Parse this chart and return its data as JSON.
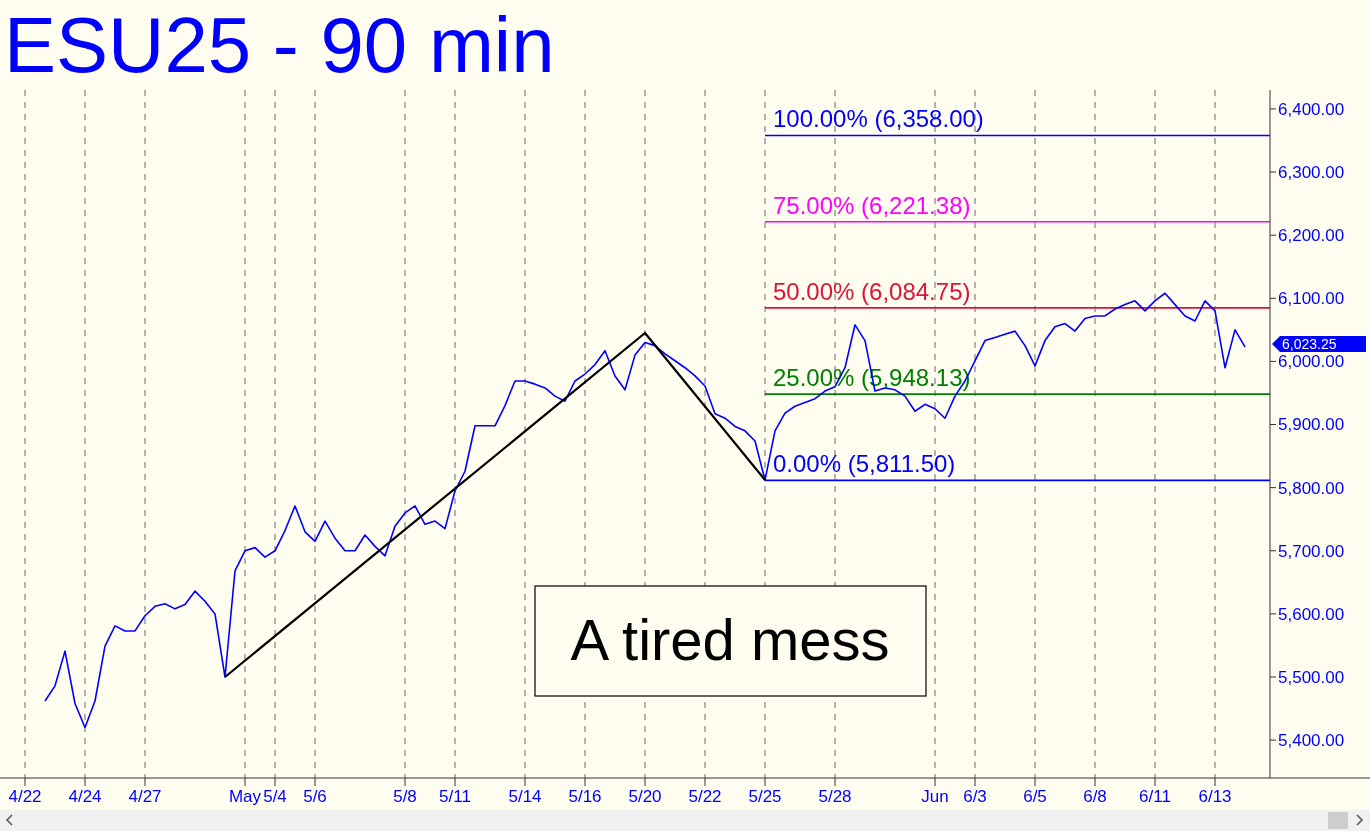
{
  "chart_data": {
    "type": "line",
    "title": "ESU25 - 90 min",
    "categories": [
      null,
      "4/22",
      null,
      null,
      null,
      null,
      null,
      "4/24",
      null,
      null,
      null,
      null,
      null,
      "4/27",
      null,
      null,
      null,
      null,
      null,
      null,
      null,
      null,
      null,
      "May",
      null,
      null,
      "5/4",
      null,
      null,
      null,
      "5/6",
      null,
      null,
      null,
      null,
      null,
      null,
      null,
      null,
      "5/8",
      null,
      null,
      null,
      null,
      "5/11",
      null,
      null,
      null,
      null,
      null,
      null,
      "5/14",
      null,
      null,
      null,
      null,
      null,
      "5/16",
      null,
      null,
      null,
      null,
      null,
      "5/20",
      null,
      null,
      null,
      null,
      null,
      "5/22",
      null,
      null,
      null,
      null,
      null,
      "5/25",
      null,
      null,
      null,
      null,
      null,
      null,
      "5/28",
      null,
      null,
      null,
      null,
      null,
      null,
      null,
      null,
      null,
      "Jun",
      null,
      null,
      null,
      "6/3",
      null,
      null,
      null,
      null,
      null,
      "6/5",
      null,
      null,
      null,
      null,
      null,
      "6/8",
      null,
      null,
      null,
      null,
      null,
      "6/11",
      null,
      null,
      null,
      null,
      null,
      "6/13",
      null,
      null,
      null,
      null,
      null
    ],
    "ylim": [
      5340,
      6430
    ],
    "yticks": [
      {
        "value": 5400,
        "label": "5,400.00"
      },
      {
        "value": 5500,
        "label": "5,500.00"
      },
      {
        "value": 5600,
        "label": "5,600.00"
      },
      {
        "value": 5700,
        "label": "5,700.00"
      },
      {
        "value": 5800,
        "label": "5,800.00"
      },
      {
        "value": 5900,
        "label": "5,900.00"
      },
      {
        "value": 6000,
        "label": "6,000.00"
      },
      {
        "value": 6100,
        "label": "6,100.00"
      },
      {
        "value": 6200,
        "label": "6,200.00"
      },
      {
        "value": 6300,
        "label": "6,300.00"
      },
      {
        "value": 6400,
        "label": "6,400.00"
      }
    ],
    "grid": "x",
    "marker": "none",
    "line_style": "solid",
    "series": [
      {
        "color": "#0000ff",
        "values": [
          null,
          null,
          null,
          5462,
          5486,
          5541,
          5458,
          5420,
          5462,
          5549,
          5581,
          5573,
          5573,
          5597,
          5612,
          5616,
          5608,
          5615,
          5636,
          5620,
          5600,
          5500,
          5668,
          5700,
          5705,
          5690,
          5700,
          5732,
          5771,
          5730,
          5715,
          5747,
          5720,
          5700,
          5700,
          5725,
          5707,
          5692,
          5739,
          5760,
          5771,
          5742,
          5747,
          5735,
          5795,
          5826,
          5898,
          5898,
          5898,
          5930,
          5969,
          5969,
          5964,
          5958,
          5945,
          5937,
          5969,
          5980,
          5995,
          6017,
          5977,
          5955,
          6010,
          6030,
          6025,
          6012,
          6001,
          5990,
          5977,
          5961,
          5917,
          5910,
          5897,
          5890,
          5874,
          5812,
          5890,
          5918,
          5929,
          5935,
          5941,
          5953,
          5960,
          5990,
          6058,
          6033,
          5953,
          5958,
          5955,
          5945,
          5921,
          5932,
          5925,
          5910,
          5945,
          5969,
          6001,
          6033,
          6038,
          6043,
          6048,
          6025,
          5993,
          6033,
          6055,
          6060,
          6048,
          6068,
          6072,
          6072,
          6083,
          6090,
          6096,
          6080,
          6096,
          6108,
          6090,
          6072,
          6064,
          6096,
          6080,
          5990,
          6050,
          6023,
          null,
          null
        ]
      },
      {
        "color": "#000000",
        "values": [
          null,
          null,
          null,
          null,
          null,
          null,
          null,
          null,
          null,
          null,
          null,
          null,
          null,
          null,
          null,
          null,
          null,
          null,
          null,
          null,
          null,
          5500,
          null,
          null,
          null,
          null,
          null,
          null,
          null,
          null,
          null,
          null,
          null,
          null,
          null,
          null,
          null,
          null,
          null,
          null,
          null,
          null,
          null,
          null,
          null,
          null,
          null,
          null,
          null,
          null,
          null,
          null,
          null,
          null,
          null,
          null,
          null,
          null,
          null,
          null,
          null,
          null,
          null,
          6045,
          null,
          null,
          null,
          null,
          null,
          null,
          null,
          null,
          null,
          null,
          null,
          5812,
          null,
          null,
          null,
          null,
          null,
          null,
          null,
          null,
          null,
          null,
          null,
          null,
          null,
          null,
          null,
          null,
          null,
          null,
          null,
          null,
          null,
          null,
          null,
          null,
          null,
          null,
          null,
          null,
          null,
          null,
          null,
          null,
          null,
          null,
          null,
          null,
          null,
          null,
          null,
          null,
          null,
          null,
          null,
          null,
          null,
          null,
          null,
          null,
          null,
          null
        ]
      }
    ],
    "ref_lines": [
      {
        "axis": "y",
        "value": 6358,
        "label": "100.00% (6,358.00)",
        "color": "#0000ff"
      },
      {
        "axis": "y",
        "value": 6221.38,
        "label": "75.00% (6,221.38)",
        "color": "#ff00ff"
      },
      {
        "axis": "y",
        "value": 6084.75,
        "label": "50.00% (6,084.75)",
        "color": "#dc143c"
      },
      {
        "axis": "y",
        "value": 5948.13,
        "label": "25.00% (5,948.13)",
        "color": "#008000"
      },
      {
        "axis": "y",
        "value": 5811.5,
        "label": "0.00% (5,811.50)",
        "color": "#0000ff"
      }
    ],
    "annotations": [
      "6,023.25",
      "A tired mess"
    ]
  }
}
